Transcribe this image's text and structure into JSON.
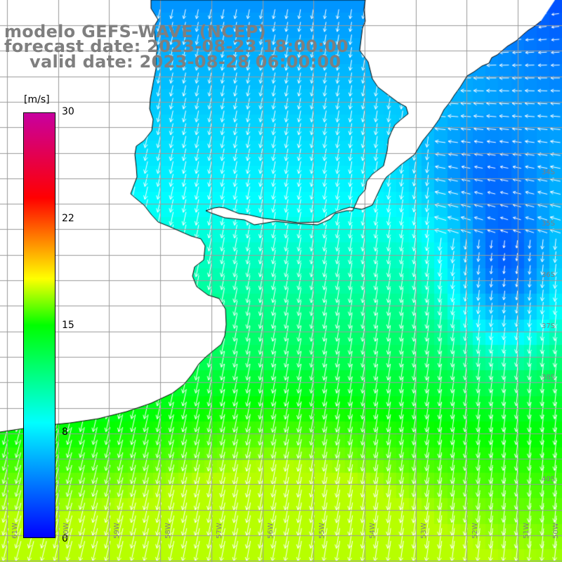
{
  "title": {
    "line1": "modelo GEFS-WAVE (NCEP)",
    "line2": "forecast date: 2023-08-23 18:00:00",
    "line3": "valid date: 2023-08-28 06:00:00"
  },
  "colorbar": {
    "unit": "[m/s]",
    "labels": [
      "30",
      "22",
      "15",
      "8",
      "0"
    ],
    "values": [
      30,
      22,
      15,
      8,
      0
    ],
    "stops": [
      "#0000ff",
      "#00ffff",
      "#00ff00",
      "#ffff00",
      "#ff0000",
      "#c800a0"
    ]
  },
  "map": {
    "lat_labels": [
      "34S",
      "35S",
      "36S",
      "37S",
      "38S",
      "40S"
    ],
    "lon_labels": [
      "61W",
      "60W",
      "59W",
      "58W",
      "57W",
      "56W",
      "55W",
      "54W",
      "53W",
      "52W",
      "51W",
      "50W"
    ],
    "land_color": "#ffffff",
    "grid_color": "#9a9a9a",
    "coast_color": "#000000",
    "arrow_color": "#ffffff"
  }
}
